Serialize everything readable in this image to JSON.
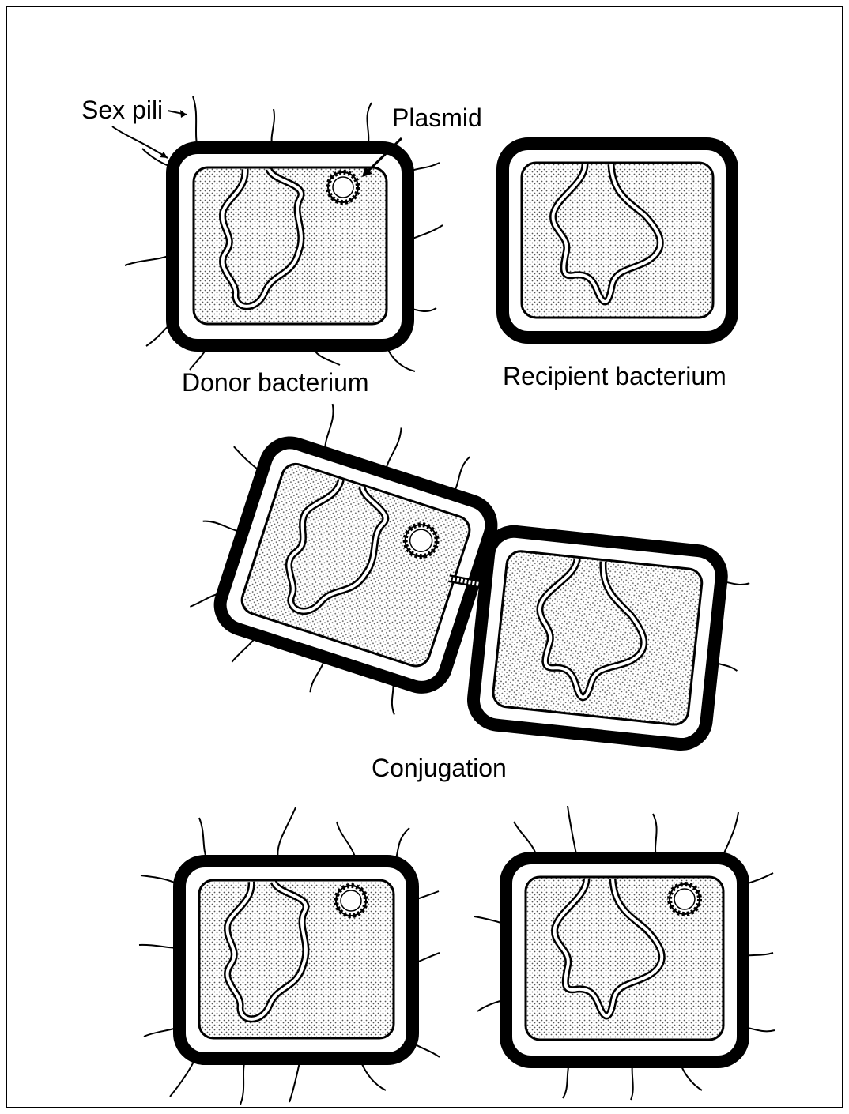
{
  "labels": {
    "sex_pili": "Sex pili",
    "plasmid": "Plasmid",
    "donor": "Donor bacterium",
    "recipient": "Recipient bacterium",
    "conjugation": "Conjugation"
  },
  "colors": {
    "ink": "#000000",
    "paper": "#ffffff",
    "cytoplasm": "#d8d8d8"
  }
}
